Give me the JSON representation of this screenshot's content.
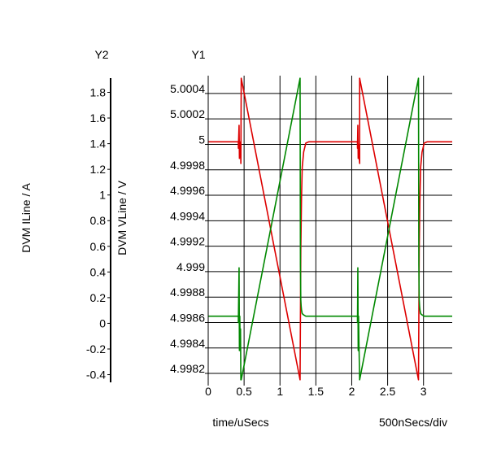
{
  "chart_data": {
    "type": "line",
    "axis_titles": {
      "y2": "Y2",
      "y1": "Y1"
    },
    "xlabel": "time/uSecs",
    "x_div_label": "500nSecs/div",
    "y1_label": "DVM VLine / V",
    "y2_label": "DVM ILine / A",
    "xlim": [
      0,
      3.4
    ],
    "y1lim": [
      4.99813,
      5.00054
    ],
    "y2lim": [
      -0.46,
      1.93
    ],
    "x_ticks": [
      0,
      0.5,
      1,
      1.5,
      2,
      2.5,
      3
    ],
    "x_tick_labels": [
      "0",
      "0.5",
      "1",
      "1.5",
      "2",
      "2.5",
      "3"
    ],
    "y1_ticks": [
      4.9982,
      4.9984,
      4.9986,
      4.9988,
      4.999,
      4.9992,
      4.9994,
      4.9996,
      4.9998,
      5,
      5.0002,
      5.0004
    ],
    "y1_tick_labels": [
      "4.9982",
      "4.9984",
      "4.9986",
      "4.9988",
      "4.999",
      "4.9992",
      "4.9994",
      "4.9996",
      "4.9998",
      "5",
      "5.0002",
      "5.0004"
    ],
    "y2_ticks": [
      -0.4,
      -0.2,
      0,
      0.2,
      0.4,
      0.6,
      0.8,
      1,
      1.2,
      1.4,
      1.6,
      1.8
    ],
    "y2_tick_labels": [
      "-0.4",
      "-0.2",
      "0",
      "0.2",
      "0.4",
      "0.6",
      "0.8",
      "1",
      "1.2",
      "1.4",
      "1.6",
      "1.8"
    ],
    "grid": true,
    "series": [
      {
        "color": "#dd0000",
        "axis": "y1",
        "x": [
          0,
          0.42,
          0.42,
          0.43,
          0.435,
          0.44,
          0.445,
          0.45,
          0.455,
          0.46,
          0.46,
          1.28,
          1.28,
          1.285,
          1.29,
          1.295,
          1.3,
          1.31,
          1.33,
          1.36,
          1.4,
          2.08,
          2.08,
          2.085,
          2.09,
          2.095,
          2.1,
          2.11,
          2.11,
          2.93,
          2.93,
          2.935,
          2.94,
          2.945,
          2.95,
          2.96,
          2.98,
          3.01,
          3.05,
          3.4
        ],
        "y": [
          5.00002,
          5.00002,
          4.99997,
          5.00015,
          4.99989,
          5.0,
          4.99993,
          5.00002,
          4.99985,
          5.00052,
          5.00052,
          4.99815,
          4.99815,
          4.99863,
          4.99916,
          4.99937,
          4.99958,
          4.99982,
          4.99994,
          5.00001,
          5.00002,
          5.00002,
          4.99997,
          5.00015,
          4.99989,
          5.0,
          4.99993,
          4.99985,
          5.00052,
          4.99815,
          4.99815,
          4.99863,
          4.99916,
          4.99937,
          4.99958,
          4.99982,
          4.99994,
          5.00001,
          5.00002,
          5.00002
        ]
      },
      {
        "color": "#008800",
        "axis": "y1",
        "x": [
          0,
          0.42,
          0.42,
          0.43,
          0.435,
          0.44,
          0.445,
          0.45,
          0.455,
          0.46,
          0.46,
          1.28,
          1.28,
          1.285,
          1.29,
          1.295,
          1.3,
          1.31,
          1.33,
          1.36,
          1.4,
          2.08,
          2.08,
          2.085,
          2.09,
          2.095,
          2.1,
          2.11,
          2.11,
          2.93,
          2.93,
          2.935,
          2.94,
          2.945,
          2.95,
          2.96,
          2.98,
          3.01,
          3.05,
          3.4
        ],
        "y": [
          4.99865,
          4.99865,
          4.9986,
          4.99903,
          4.99838,
          4.99865,
          4.99845,
          4.99855,
          4.99815,
          4.99815,
          4.99815,
          5.00052,
          5.00052,
          4.99905,
          4.99878,
          4.99873,
          4.9987,
          4.99867,
          4.99866,
          4.99865,
          4.99865,
          4.99865,
          4.9986,
          4.99903,
          4.99838,
          4.99865,
          4.99845,
          4.99815,
          4.99815,
          5.00052,
          5.00052,
          4.99905,
          4.99878,
          4.99873,
          4.9987,
          4.99867,
          4.99866,
          4.99865,
          4.99865,
          4.99865
        ]
      }
    ]
  }
}
